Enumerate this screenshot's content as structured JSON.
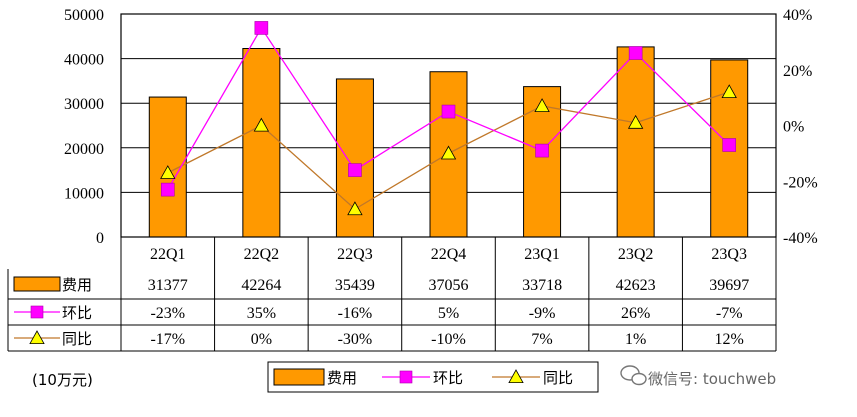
{
  "chart_data": {
    "type": "bar",
    "categories": [
      "22Q1",
      "22Q2",
      "22Q3",
      "22Q4",
      "23Q1",
      "23Q2",
      "23Q3"
    ],
    "series": [
      {
        "name": "费用",
        "kind": "bar",
        "axis": "left",
        "color": "#FF9900",
        "values": [
          31377,
          42264,
          35439,
          37056,
          33718,
          42623,
          39697
        ],
        "labels": [
          "31377",
          "42264",
          "35439",
          "37056",
          "33718",
          "42623",
          "39697"
        ]
      },
      {
        "name": "环比",
        "kind": "line",
        "marker": "square",
        "axis": "right",
        "color": "#FF00FF",
        "values": [
          -23,
          35,
          -16,
          5,
          -9,
          26,
          -7
        ],
        "labels": [
          "-23%",
          "35%",
          "-16%",
          "5%",
          "-9%",
          "26%",
          "-7%"
        ]
      },
      {
        "name": "同比",
        "kind": "line",
        "marker": "triangle",
        "axis": "right",
        "color": "#C0782A",
        "marker_color": "#FFFF00",
        "values": [
          -17,
          0,
          -30,
          -10,
          7,
          1,
          12
        ],
        "labels": [
          "-17%",
          "0%",
          "-30%",
          "-10%",
          "7%",
          "1%",
          "12%"
        ]
      }
    ],
    "y_left": {
      "ylim": [
        0,
        50000
      ],
      "ticks": [
        "0",
        "10000",
        "20000",
        "30000",
        "40000",
        "50000"
      ]
    },
    "y_right": {
      "ylim": [
        -40,
        40
      ],
      "ticks": [
        "-40%",
        "-20%",
        "0%",
        "20%",
        "40%"
      ]
    },
    "unit_label": "(10万元)",
    "grid": true,
    "legend_position": "bottom",
    "data_table": true
  },
  "watermark": "微信号: touchweb"
}
